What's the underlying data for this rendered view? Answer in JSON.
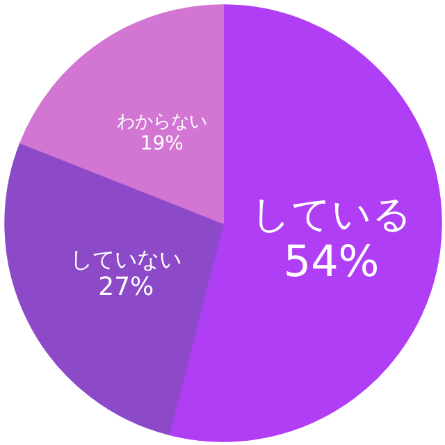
{
  "chart_data": {
    "type": "pie",
    "categories": [
      "している",
      "していない",
      "わからない"
    ],
    "values": [
      54,
      27,
      19
    ],
    "colors": [
      "#b03ef5",
      "#8c4ac9",
      "#d275d3"
    ],
    "value_labels": [
      "54%",
      "27%",
      "19%"
    ]
  }
}
